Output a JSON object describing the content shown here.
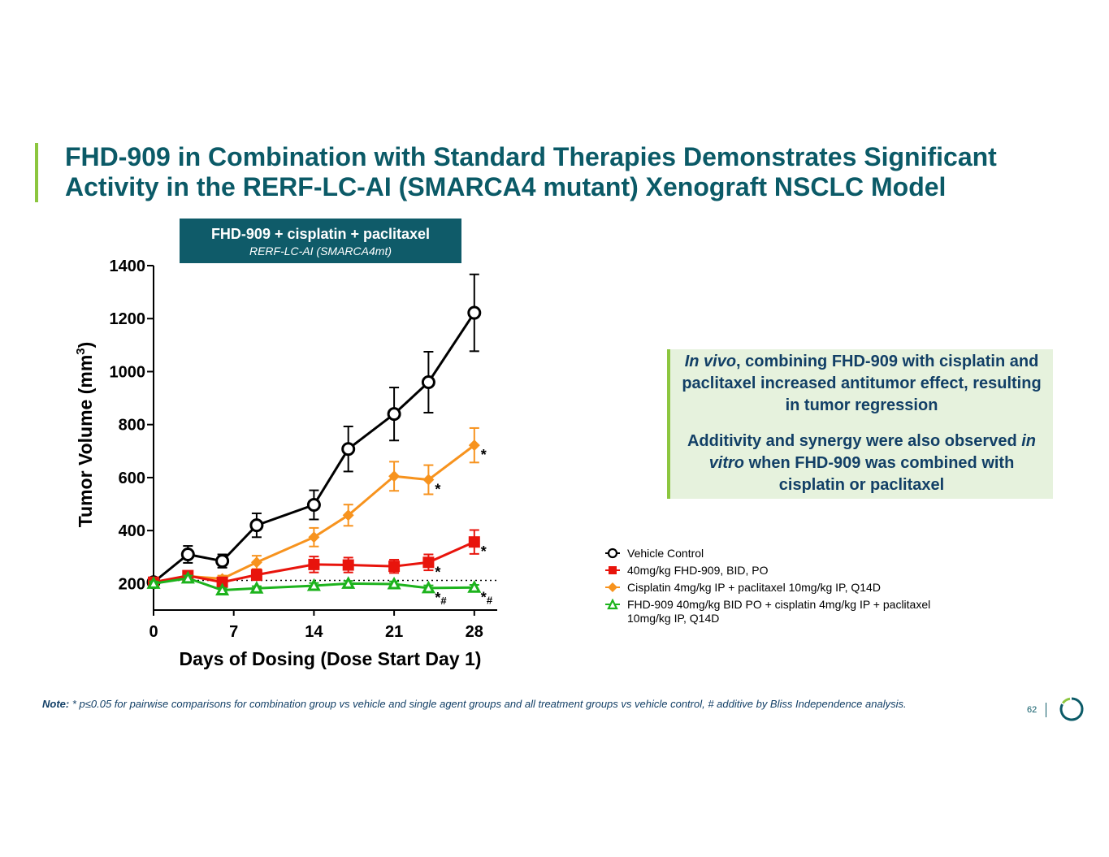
{
  "title": "FHD-909 in Combination with Standard Therapies Demonstrates Significant Activity in the RERF-LC-AI (SMARCA4 mutant) Xenograft NSCLC Model",
  "chart_header": {
    "title": "FHD-909 + cisplatin + paclitaxel",
    "subtitle": "RERF-LC-AI (SMARCA4mt)"
  },
  "callout": {
    "p1_italic": "In vivo",
    "p1_rest": ", combining FHD-909 with cisplatin and paclitaxel increased antitumor effect, resulting in tumor regression",
    "p2_before": "Additivity and synergy were also observed ",
    "p2_italic": "in vitro",
    "p2_after": " when FHD-909 was combined with cisplatin or paclitaxel"
  },
  "legend": [
    {
      "label": "Vehicle Control",
      "color": "#000000",
      "marker": "circle-open"
    },
    {
      "label": "40mg/kg FHD-909, BID, PO",
      "color": "#e8140c",
      "marker": "square"
    },
    {
      "label": "Cisplatin 4mg/kg IP + paclitaxel 10mg/kg IP, Q14D",
      "color": "#f7931e",
      "marker": "diamond"
    },
    {
      "label": "FHD-909 40mg/kg BID PO + cisplatin 4mg/kg IP + paclitaxel 10mg/kg IP, Q14D",
      "color": "#1db31d",
      "marker": "triangle-open"
    }
  ],
  "note": {
    "label": "Note:",
    "text": " * p≤0.05 for pairwise comparisons for combination group vs vehicle and single agent groups and all treatment groups vs vehicle control, # additive by Bliss Independence analysis."
  },
  "page_number": "62",
  "chart_data": {
    "type": "line",
    "xlabel": "Days of Dosing (Dose Start Day 1)",
    "ylabel": "Tumor Volume (mm",
    "ylabel_sup": "3",
    "ylabel_close": ")",
    "xlim": [
      0,
      30
    ],
    "ylim": [
      100,
      1400
    ],
    "xticks": [
      0,
      7,
      14,
      21,
      28
    ],
    "xtick_labels": [
      "0",
      "7",
      "14",
      "21",
      "28"
    ],
    "yticks": [
      200,
      400,
      600,
      800,
      1000,
      1200,
      1400
    ],
    "ytick_labels": [
      "200",
      "400",
      "600",
      "800",
      "1000",
      "1200",
      "1400"
    ],
    "reference_line_y": 212,
    "x": [
      0,
      3,
      6,
      9,
      14,
      17,
      21,
      24,
      28
    ],
    "series": [
      {
        "name": "Vehicle Control",
        "color": "#000000",
        "marker": "circle-open",
        "values": [
          205,
          310,
          285,
          420,
          497,
          708,
          840,
          960,
          1222
        ],
        "errors": [
          10,
          32,
          25,
          45,
          55,
          85,
          100,
          115,
          145
        ]
      },
      {
        "name": "Cisplatin 4mg/kg IP + paclitaxel 10mg/kg IP, Q14D",
        "color": "#f7931e",
        "marker": "diamond",
        "values": [
          205,
          228,
          218,
          280,
          375,
          458,
          605,
          592,
          722
        ],
        "errors": [
          10,
          15,
          12,
          25,
          35,
          40,
          55,
          55,
          65
        ]
      },
      {
        "name": "40mg/kg FHD-909, BID, PO",
        "color": "#e8140c",
        "marker": "square",
        "values": [
          205,
          230,
          205,
          233,
          272,
          270,
          265,
          280,
          357
        ],
        "errors": [
          10,
          15,
          15,
          20,
          30,
          28,
          25,
          30,
          45
        ]
      },
      {
        "name": "FHD-909 40mg/kg BID PO + cisplatin 4mg/kg IP + paclitaxel 10mg/kg IP, Q14D",
        "color": "#1db31d",
        "marker": "triangle-open",
        "values": [
          200,
          220,
          175,
          182,
          192,
          200,
          198,
          183,
          185
        ],
        "errors": [
          8,
          10,
          8,
          8,
          10,
          10,
          10,
          10,
          10
        ]
      }
    ],
    "annotations": [
      {
        "x": 24,
        "y": 592,
        "text": "*",
        "series": "Cisplatin 4mg/kg IP + paclitaxel 10mg/kg IP, Q14D"
      },
      {
        "x": 28,
        "y": 722,
        "text": "*",
        "series": "Cisplatin 4mg/kg IP + paclitaxel 10mg/kg IP, Q14D"
      },
      {
        "x": 24,
        "y": 280,
        "text": "*",
        "series": "40mg/kg FHD-909, BID, PO"
      },
      {
        "x": 28,
        "y": 357,
        "text": "*",
        "series": "40mg/kg FHD-909, BID, PO"
      },
      {
        "x": 24,
        "y": 183,
        "text": "*#",
        "series": "FHD-909 40mg/kg BID PO + cisplatin 4mg/kg IP + paclitaxel 10mg/kg IP, Q14D"
      },
      {
        "x": 28,
        "y": 185,
        "text": "*#",
        "series": "FHD-909 40mg/kg BID PO + cisplatin 4mg/kg IP + paclitaxel 10mg/kg IP, Q14D"
      }
    ]
  }
}
